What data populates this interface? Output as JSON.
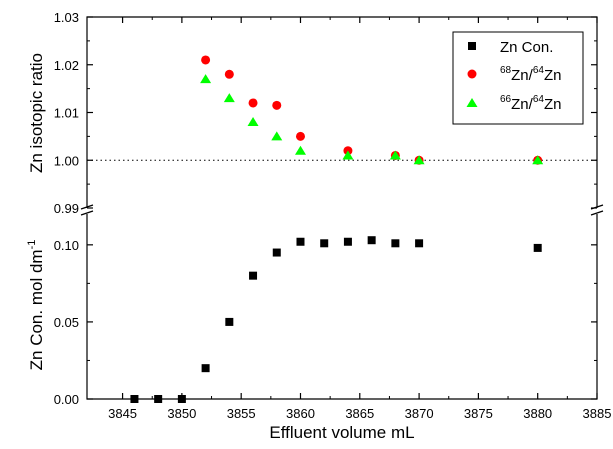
{
  "chart_data": {
    "type": "scatter",
    "xlabel": "Effluent volume mL",
    "x_ticks": [
      "3845",
      "3850",
      "3855",
      "3860",
      "3865",
      "3870",
      "3875",
      "3880",
      "3885"
    ],
    "xlim": [
      3842,
      3885
    ],
    "top_panel": {
      "ylabel": "Zn isotopic ratio",
      "ylim": [
        0.99,
        1.03
      ],
      "y_ticks": [
        "0.99",
        "1.00",
        "1.01",
        "1.02",
        "1.03"
      ],
      "reference_line": 1.0,
      "reference_line_style": "dotted"
    },
    "bottom_panel": {
      "ylabel_main": "Zn Con.  mol dm",
      "ylabel_sup": "-1",
      "ylim": [
        0,
        0.12
      ],
      "y_ticks": [
        "0.00",
        "0.05",
        "0.10"
      ]
    },
    "legend": {
      "placement": "top-right",
      "entries": [
        {
          "label": "Zn Con.",
          "marker": "square",
          "color": "#000000"
        },
        {
          "sup1": "68",
          "mid1": "Zn/",
          "sup2": "64",
          "mid2": "Zn",
          "marker": "circle",
          "color": "#ff0000"
        },
        {
          "sup1": "66",
          "mid1": "Zn/",
          "sup2": "64",
          "mid2": "Zn",
          "marker": "triangle",
          "color": "#00ff00"
        }
      ]
    },
    "series": [
      {
        "name": "Zn Con.",
        "panel": "bottom",
        "marker": "square",
        "color": "#000000",
        "x": [
          3846,
          3848,
          3850,
          3852,
          3854,
          3856,
          3858,
          3860,
          3862,
          3864,
          3866,
          3868,
          3870,
          3880
        ],
        "y": [
          0.0,
          0.0,
          0.0,
          0.02,
          0.05,
          0.08,
          0.095,
          0.102,
          0.101,
          0.102,
          0.103,
          0.101,
          0.101,
          0.098
        ]
      },
      {
        "name": "68Zn/64Zn",
        "panel": "top",
        "marker": "circle",
        "color": "#ff0000",
        "x": [
          3852,
          3854,
          3856,
          3858,
          3860,
          3864,
          3868,
          3870,
          3880
        ],
        "y": [
          1.021,
          1.018,
          1.012,
          1.0115,
          1.005,
          1.002,
          1.001,
          1.0,
          1.0
        ]
      },
      {
        "name": "66Zn/64Zn",
        "panel": "top",
        "marker": "triangle",
        "color": "#00ff00",
        "x": [
          3852,
          3854,
          3856,
          3858,
          3860,
          3864,
          3868,
          3870,
          3880
        ],
        "y": [
          1.017,
          1.013,
          1.008,
          1.005,
          1.002,
          1.001,
          1.001,
          1.0,
          1.0
        ]
      }
    ]
  }
}
